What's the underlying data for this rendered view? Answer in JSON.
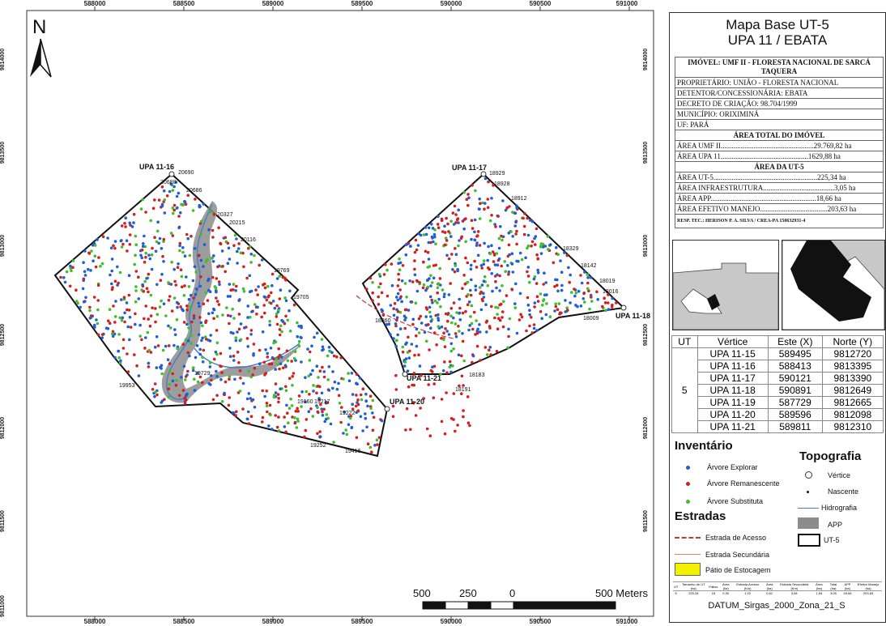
{
  "map": {
    "x_ticks": [
      "588000",
      "588500",
      "589000",
      "589500",
      "590000",
      "590500",
      "591000"
    ],
    "y_ticks": [
      "9814000",
      "9813500",
      "9813000",
      "9812500",
      "9812000",
      "9811500",
      "9811000"
    ],
    "north_label": "N",
    "upa_labels": {
      "upa16": "UPA 11-16",
      "upa17": "UPA 11-17",
      "upa18": "UPA 11-18",
      "upa20": "UPA 11-20",
      "upa21": "UPA 11-21"
    },
    "sample_tree_ids": [
      "20690",
      "20688",
      "20686",
      "20327",
      "20215",
      "20116",
      "19769",
      "19705",
      "18929",
      "18928",
      "18912",
      "18329",
      "18142",
      "18019",
      "18016",
      "18009",
      "18860",
      "19953",
      "19160",
      "19217",
      "19222",
      "19416",
      "19252",
      "18183",
      "18191",
      "19729"
    ],
    "scale": {
      "t0": "500",
      "t1": "250",
      "t2": "0",
      "t3": "500 Meters"
    }
  },
  "legend": {
    "title1": "Mapa Base UT-5",
    "title2": "UPA 11 / EBATA",
    "info": {
      "imovel": "IMÓVEL: UMF II - FLORESTA NACIONAL DE SARCÁ TAQUERA",
      "proprietario": "PROPRIETÁRIO: UNIÃO - FLORESTA NACIONAL",
      "detentor": "DETENTOR/CONCESSIONÁRIA: EBATA",
      "decreto": "DECRETO DE CRIAÇÃO: 98.704/1999",
      "municipio": "MUNICÍPIO: ORIXIMINÁ",
      "uf": "UF: PARÁ",
      "area_total_header": "ÁREA TOTAL DO IMÓVEL",
      "area_umf": "ÁREA UMF II...................................................29.769,82 ha",
      "area_upa": "ÁREA UPA 11................................................1629,88 ha",
      "area_ut_header": "ÁREA DA UT-5",
      "area_ut5": "ÁREA UT-5.........................................................225,34 ha",
      "area_infra": "ÁREA INFRAESTRUTURA.......................................3,05 ha",
      "area_app": "ÁREA APP..........................................................18,66 ha",
      "area_efetivo": "ÁREA EFETIVO MANEJO.....................................203,63 ha",
      "resp": "RESP. TEC.: HERISON P. A. SILVA / CREA-PA 150632931-4"
    },
    "vertex_table": {
      "headers": [
        "UT",
        "Vértice",
        "Este (X)",
        "Norte (Y)"
      ],
      "ut": "5",
      "rows": [
        [
          "UPA 11-15",
          "589495",
          "9812720"
        ],
        [
          "UPA 11-16",
          "588413",
          "9813395"
        ],
        [
          "UPA 11-17",
          "590121",
          "9813390"
        ],
        [
          "UPA 11-18",
          "590891",
          "9812649"
        ],
        [
          "UPA 11-19",
          "587729",
          "9812665"
        ],
        [
          "UPA 11-20",
          "589596",
          "9812098"
        ],
        [
          "UPA 11-21",
          "589811",
          "9812310"
        ]
      ]
    },
    "inventario": {
      "title": "Inventário",
      "explorar": "Árvore Explorar",
      "remanescente": "Árvore Remanescente",
      "substituta": "Árvore Substituta"
    },
    "topografia": {
      "title": "Topografia",
      "vertice": "Vértice",
      "nascente": "Nascente",
      "hidrografia": "Hidrografia",
      "app": "APP",
      "ut5": "UT-5"
    },
    "estradas": {
      "title": "Estradas",
      "acesso": "Estrada de Acesso",
      "secundaria": "Estrada Secundária",
      "patio": "Pátio de Estocagem"
    },
    "area_table": {
      "headers": [
        "UT",
        "Tamanho de UT (ha)",
        "Pátios",
        "Área (ha)",
        "Estrada Acesso (Km)",
        "Área (ha)",
        "Estrada Secundária (Km)",
        "Área (ha)",
        "Total (ha)",
        "APP (ha)",
        "Efetivo Manejo (ha)"
      ],
      "row": [
        "5",
        "225,34",
        "18",
        "0,90",
        "1,02",
        "0,61",
        "3,84",
        "1,54",
        "3,05",
        "18,66",
        "203,63"
      ]
    },
    "datum": "DATUM_Sirgas_2000_Zona_21_S"
  },
  "colors": {
    "explorar": "#1f5fd6",
    "remanescente": "#d41f1f",
    "substituta": "#3fbf2a",
    "app": "#8c8c8c",
    "hidrografia": "#4a7fc4",
    "estrada_acesso": "#c43a3a",
    "estrada_secundaria": "#d68a5a",
    "patio": "#f2f200"
  }
}
